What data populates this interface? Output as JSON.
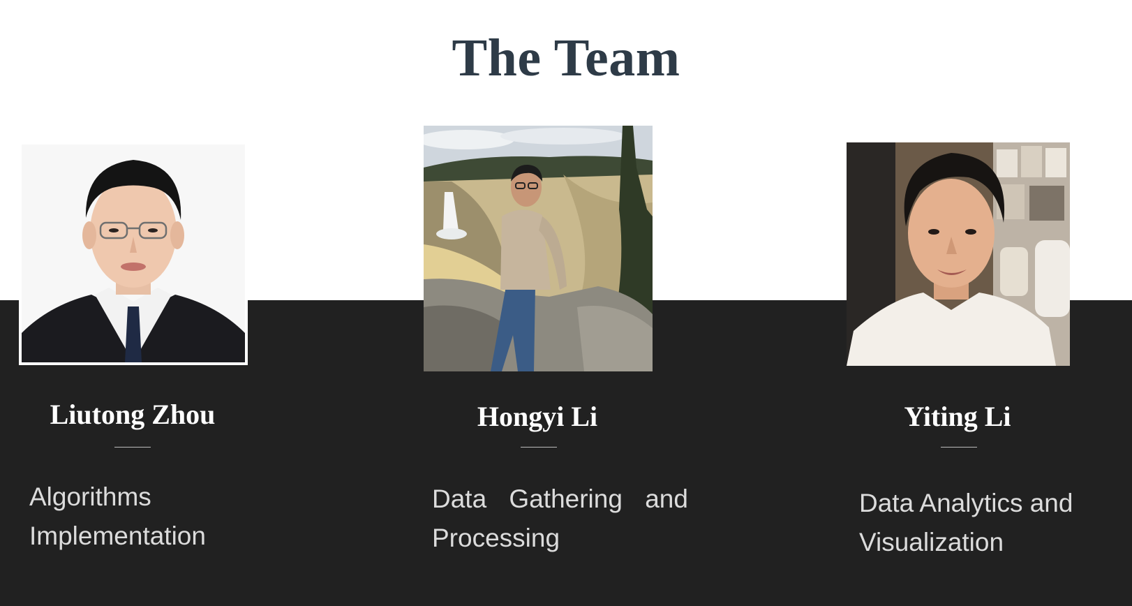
{
  "slide": {
    "title": "The Team",
    "colors": {
      "background": "#ffffff",
      "band": "#212121",
      "title": "#2e3b47",
      "name": "#ffffff",
      "role": "#dcdcdc"
    }
  },
  "members": [
    {
      "name": "Liutong Zhou",
      "role_line1": "Algorithms",
      "role_line2": "Implementation",
      "photo_icon": "portrait-photo"
    },
    {
      "name": "Hongyi Li",
      "role_line1": "Data Gathering and",
      "role_line2": "Processing",
      "photo_icon": "canyon-portrait-photo"
    },
    {
      "name": "Yiting Li",
      "role_line1": "Data Analytics and",
      "role_line2": "Visualization",
      "photo_icon": "indoor-portrait-photo"
    }
  ]
}
